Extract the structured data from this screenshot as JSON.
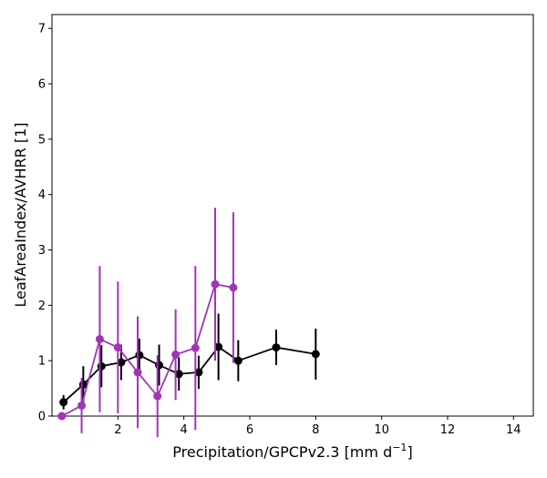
{
  "chart_data": {
    "type": "line",
    "xlabel": "Precipitation/GPCPv2.3 [mm d",
    "xlabel_sup": "−1",
    "xlabel_end": "]",
    "ylabel": "LeafAreaIndex/AVHRR [1]",
    "xlim": [
      0,
      14.6
    ],
    "ylim": [
      0,
      7.25
    ],
    "xticks": [
      2,
      4,
      6,
      8,
      10,
      12,
      14
    ],
    "xtick_labels": [
      "2",
      "4",
      "6",
      "8",
      "10",
      "12",
      "14"
    ],
    "yticks": [
      0,
      1,
      2,
      3,
      4,
      5,
      6,
      7
    ],
    "ytick_labels": [
      "0",
      "1",
      "2",
      "3",
      "4",
      "5",
      "6",
      "7"
    ],
    "grid": false,
    "series": [
      {
        "color": "#000000",
        "x": [
          0.35,
          0.95,
          1.5,
          2.1,
          2.65,
          3.25,
          3.85,
          4.45,
          5.05,
          5.65,
          6.8,
          8.0
        ],
        "y": [
          0.25,
          0.57,
          0.9,
          0.97,
          1.1,
          0.92,
          0.76,
          0.79,
          1.25,
          1.0,
          1.24,
          1.12
        ],
        "err": [
          0.13,
          0.33,
          0.38,
          0.32,
          0.3,
          0.37,
          0.3,
          0.3,
          0.6,
          0.37,
          0.32,
          0.46
        ]
      },
      {
        "color": "#a035b5",
        "x": [
          0.3,
          0.9,
          1.45,
          2.0,
          2.6,
          3.2,
          3.75,
          4.35,
          4.95,
          5.5
        ],
        "y": [
          0.0,
          0.19,
          1.39,
          1.24,
          0.79,
          0.36,
          1.11,
          1.23,
          2.38,
          2.32
        ],
        "err": [
          0.0,
          0.5,
          1.32,
          1.19,
          1.01,
          0.74,
          0.82,
          1.48,
          1.38,
          1.36
        ]
      }
    ]
  }
}
